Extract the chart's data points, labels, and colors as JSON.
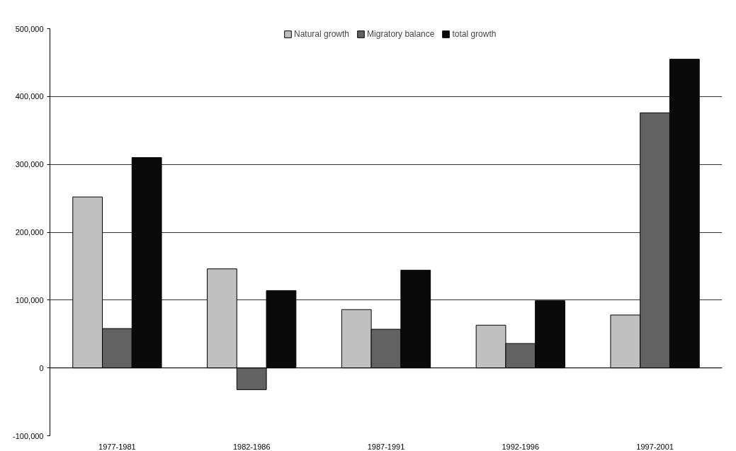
{
  "chart_data": {
    "type": "bar",
    "categories": [
      "1977-1981",
      "1982-1986",
      "1987-1991",
      "1992-1996",
      "1997-2001"
    ],
    "series": [
      {
        "name": "Natural growth",
        "color": "#c0c0c0",
        "values": [
          252000,
          146000,
          86000,
          63000,
          78000
        ]
      },
      {
        "name": "Migratory balance",
        "color": "#626262",
        "values": [
          58000,
          -32000,
          57000,
          36000,
          376000
        ]
      },
      {
        "name": "total growth",
        "color": "#0a0a0a",
        "values": [
          310000,
          114000,
          144000,
          99000,
          455000
        ]
      }
    ],
    "ylim": [
      -100000,
      500000
    ],
    "yticks": [
      {
        "value": -100000,
        "label": "-100,000"
      },
      {
        "value": 0,
        "label": "0"
      },
      {
        "value": 100000,
        "label": "100,000"
      },
      {
        "value": 200000,
        "label": "200,000"
      },
      {
        "value": 300000,
        "label": "300,000"
      },
      {
        "value": 400000,
        "label": "400,000"
      },
      {
        "value": 500000,
        "label": "500,000"
      }
    ],
    "grid": "y",
    "legend": "top"
  }
}
